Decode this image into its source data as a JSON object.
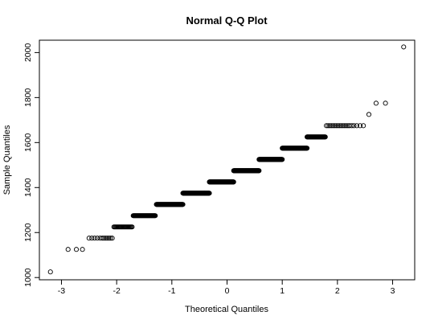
{
  "chart_data": {
    "type": "scatter",
    "title": "Normal Q-Q Plot",
    "xlabel": "Theoretical Quantiles",
    "ylabel": "Sample Quantiles",
    "xlim": [
      -3.4,
      3.4
    ],
    "ylim": [
      990,
      2055
    ],
    "x_ticks": [
      -3,
      -2,
      -1,
      0,
      1,
      2,
      3
    ],
    "y_ticks": [
      1000,
      1200,
      1400,
      1600,
      1800,
      2000
    ],
    "grid": false,
    "legend": "none",
    "marker": "open-circle",
    "groups": [
      {
        "y": 1025,
        "x": [
          -3.2
        ]
      },
      {
        "y": 1125,
        "x": [
          -2.88,
          -2.73,
          -2.62
        ]
      },
      {
        "y": 1175,
        "x": [
          -2.5,
          -2.45,
          -2.4,
          -2.35,
          -2.3,
          -2.26,
          -2.23,
          -2.2,
          -2.17,
          -2.14,
          -2.11,
          -2.08
        ]
      },
      {
        "y": 1225,
        "x_range": [
          -2.05,
          -1.72
        ],
        "n": 22
      },
      {
        "y": 1275,
        "x_range": [
          -1.7,
          -1.3
        ],
        "n": 45
      },
      {
        "y": 1325,
        "x_range": [
          -1.28,
          -0.8
        ],
        "n": 70
      },
      {
        "y": 1375,
        "x_range": [
          -0.8,
          -0.32
        ],
        "n": 85
      },
      {
        "y": 1425,
        "x_range": [
          -0.32,
          0.12
        ],
        "n": 90
      },
      {
        "y": 1475,
        "x_range": [
          0.12,
          0.58
        ],
        "n": 85
      },
      {
        "y": 1525,
        "x_range": [
          0.58,
          1.0
        ],
        "n": 75
      },
      {
        "y": 1575,
        "x_range": [
          1.0,
          1.45
        ],
        "n": 60
      },
      {
        "y": 1625,
        "x_range": [
          1.45,
          1.78
        ],
        "n": 35
      },
      {
        "y": 1675,
        "x": [
          1.8,
          1.83,
          1.86,
          1.89,
          1.92,
          1.95,
          1.98,
          2.01,
          2.04,
          2.07,
          2.1,
          2.13,
          2.16,
          2.19,
          2.22,
          2.26,
          2.3,
          2.35,
          2.41,
          2.47
        ]
      },
      {
        "y": 1725,
        "x": [
          2.57
        ]
      },
      {
        "y": 1775,
        "x": [
          2.7,
          2.87
        ]
      },
      {
        "y": 2025,
        "x": [
          3.2
        ]
      }
    ]
  }
}
